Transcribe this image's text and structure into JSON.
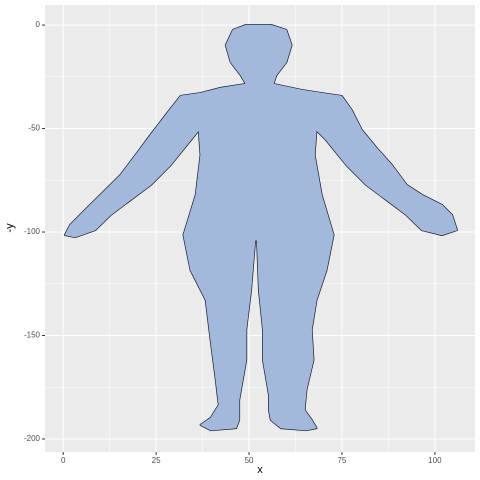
{
  "chart_data": {
    "type": "polygon",
    "x_label": "x",
    "y_label": "-y",
    "xlim": [
      -4.9,
      110.8
    ],
    "ylim": [
      -206.3,
      9.7
    ],
    "xticks": [
      0,
      25,
      50,
      75,
      100
    ],
    "yticks": [
      0,
      -50,
      -100,
      -150,
      -200
    ],
    "minor_xticks": [
      12.5,
      37.5,
      62.5,
      87.5
    ],
    "minor_yticks": [
      -25,
      -75,
      -125,
      -175
    ],
    "grid": true,
    "color": "#a3b9dc",
    "x": [
      49.2,
      55.9,
      60.0,
      61.4,
      60.0,
      57.3,
      56.5,
      64.1,
      69.5,
      74.9,
      77.6,
      80.3,
      84.3,
      88.4,
      92.4,
      96.5,
      101.9,
      104.6,
      105.9,
      101.9,
      96.5,
      92.4,
      87.0,
      81.6,
      76.2,
      70.8,
      68.1,
      67.6,
      69.5,
      72.7,
      70.8,
      68.1,
      66.8,
      67.3,
      65.4,
      64.9,
      66.8,
      68.1,
      65.4,
      58.6,
      55.9,
      55.4,
      55.4,
      53.8,
      53.8,
      52.7,
      52.2,
      51.6,
      50.5,
      49.2,
      49.2,
      47.3,
      47.3,
      46.5,
      39.7,
      37.0,
      39.7,
      41.9,
      41.1,
      39.7,
      38.4,
      34.3,
      32.4,
      35.7,
      37.0,
      36.5,
      34.3,
      28.9,
      23.5,
      18.1,
      12.7,
      8.6,
      3.2,
      0.5,
      1.9,
      5.9,
      10.0,
      15.4,
      19.5,
      23.5,
      27.6,
      31.6,
      37.0,
      42.4,
      49.2,
      47.8,
      45.1,
      43.8,
      45.7
    ],
    "y": [
      0,
      0,
      -2.4,
      -9.7,
      -17.9,
      -24.2,
      -28.5,
      -31.4,
      -32.9,
      -34.3,
      -41.1,
      -50.7,
      -59.4,
      -67.6,
      -77.3,
      -82.1,
      -87.0,
      -91.8,
      -99.0,
      -101.4,
      -99.0,
      -91.8,
      -84.5,
      -77.3,
      -67.6,
      -55.6,
      -50.7,
      -62.8,
      -82.1,
      -101.4,
      -118.4,
      -132.9,
      -147.3,
      -161.8,
      -176.3,
      -186.0,
      -190.8,
      -194.7,
      -195.7,
      -194.7,
      -190.8,
      -186.0,
      -178.7,
      -161.8,
      -147.3,
      -128.0,
      -103.9,
      -103.9,
      -128.0,
      -147.3,
      -161.8,
      -181.2,
      -190.8,
      -194.7,
      -195.7,
      -193.2,
      -189.9,
      -183.6,
      -171.5,
      -152.2,
      -132.9,
      -118.4,
      -101.4,
      -82.1,
      -62.8,
      -50.7,
      -55.6,
      -67.6,
      -77.3,
      -84.5,
      -91.8,
      -99.0,
      -102.4,
      -101.4,
      -96.6,
      -89.4,
      -82.1,
      -72.5,
      -62.8,
      -53.1,
      -43.5,
      -34.3,
      -32.9,
      -30.4,
      -28.5,
      -24.2,
      -17.9,
      -9.7,
      -2.4
    ]
  }
}
